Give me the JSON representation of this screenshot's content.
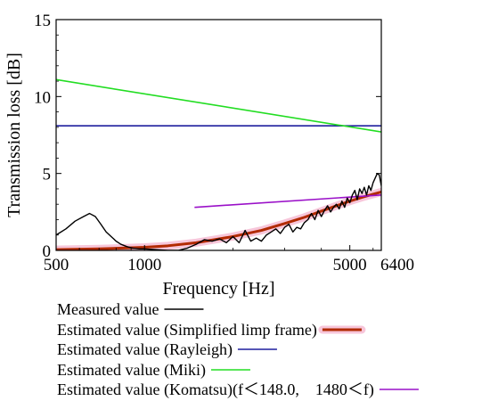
{
  "chart_data": {
    "type": "line",
    "xlabel": "Frequency [Hz]",
    "ylabel": "Transmission loss [dB]",
    "xscale": "log",
    "xlim": [
      500,
      6400
    ],
    "ylim": [
      0,
      15
    ],
    "xticks": [
      {
        "value": 500,
        "label": "500"
      },
      {
        "value": 1000,
        "label": "1000"
      },
      {
        "value": 5000,
        "label": "5000"
      },
      {
        "value": 6400,
        "label": "6400"
      }
    ],
    "yticks": [
      {
        "value": 0,
        "label": "0"
      },
      {
        "value": 5,
        "label": "5"
      },
      {
        "value": 10,
        "label": "10"
      },
      {
        "value": 15,
        "label": "15"
      }
    ],
    "grid": false,
    "legend_position": "below",
    "series": [
      {
        "name": "Measured value",
        "color": "#000000",
        "x": [
          500,
          540,
          580,
          620,
          650,
          680,
          710,
          740,
          770,
          800,
          830,
          870,
          910,
          960,
          1000,
          1100,
          1200,
          1300,
          1400,
          1500,
          1600,
          1700,
          1800,
          1900,
          2000,
          2100,
          2200,
          2300,
          2400,
          2500,
          2600,
          2700,
          2800,
          2900,
          3000,
          3100,
          3200,
          3300,
          3400,
          3500,
          3600,
          3700,
          3800,
          3900,
          4000,
          4100,
          4200,
          4300,
          4400,
          4500,
          4600,
          4700,
          4800,
          4900,
          5000,
          5100,
          5200,
          5300,
          5400,
          5500,
          5600,
          5700,
          5800,
          5900,
          6000,
          6100,
          6200,
          6300,
          6400
        ],
        "y": [
          1.0,
          1.4,
          1.9,
          2.2,
          2.4,
          2.2,
          1.7,
          1.2,
          0.9,
          0.6,
          0.4,
          0.25,
          0.15,
          0.1,
          0.1,
          0.05,
          0.0,
          0.0,
          0.15,
          0.4,
          0.7,
          0.6,
          0.75,
          0.5,
          0.9,
          0.5,
          1.3,
          0.6,
          0.8,
          0.6,
          1.0,
          1.2,
          1.4,
          1.1,
          1.5,
          1.7,
          1.2,
          1.5,
          1.4,
          1.8,
          2.0,
          2.4,
          2.0,
          2.6,
          2.2,
          2.6,
          2.9,
          2.5,
          2.8,
          3.0,
          2.7,
          3.2,
          2.8,
          3.4,
          3.1,
          3.6,
          3.9,
          3.3,
          4.0,
          3.7,
          4.1,
          3.6,
          4.2,
          3.9,
          4.4,
          4.7,
          5.0,
          4.9,
          4.2
        ]
      },
      {
        "name": "Estimated value (Simplified limp frame)",
        "color": "#b22a00",
        "halo_color": "#f7c6da",
        "x": [
          500,
          700,
          1000,
          1200,
          1500,
          2000,
          2500,
          3000,
          3500,
          4000,
          4500,
          5000,
          5500,
          6000,
          6400
        ],
        "y": [
          0.05,
          0.1,
          0.2,
          0.3,
          0.5,
          0.9,
          1.3,
          1.75,
          2.15,
          2.55,
          2.9,
          3.2,
          3.45,
          3.65,
          3.8
        ]
      },
      {
        "name": "Estimated value (Rayleigh)",
        "color": "#1f1f9e",
        "x": [
          500,
          6400
        ],
        "y": [
          8.1,
          8.1
        ]
      },
      {
        "name": "Estimated value (Miki)",
        "color": "#22dd22",
        "x": [
          500,
          6400
        ],
        "y": [
          11.1,
          7.7
        ]
      },
      {
        "name": "Estimated value (Komatsu)(f＜148.0,　1480＜f)",
        "color": "#9a10c8",
        "x": [
          1480,
          6400
        ],
        "y": [
          2.8,
          3.6
        ]
      }
    ]
  }
}
